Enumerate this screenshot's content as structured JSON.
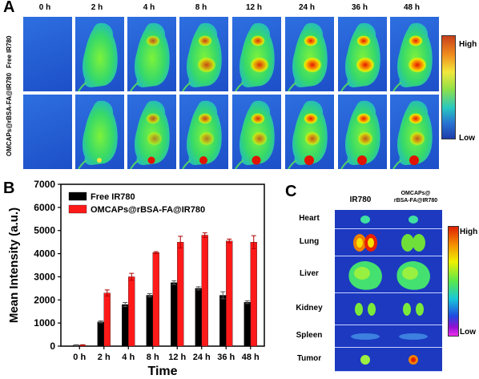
{
  "panels": {
    "a": "A",
    "b": "B",
    "c": "C"
  },
  "panel_a": {
    "timepoints": [
      "0 h",
      "2 h",
      "4 h",
      "8 h",
      "12 h",
      "24 h",
      "36 h",
      "48 h"
    ],
    "rows": [
      "Free IR780",
      "OMCAPs@rBSA-FA@IR780"
    ],
    "colorbar_high": "High",
    "colorbar_low": "Low"
  },
  "panel_c": {
    "columns": [
      "IR780",
      "OMCAPs@",
      "rBSA-FA@IR780"
    ],
    "organs": [
      "Heart",
      "Lung",
      "Liver",
      "Kidney",
      "Spleen",
      "Tumor"
    ],
    "colorbar_high": "High",
    "colorbar_low": "Low"
  },
  "chart_data": {
    "type": "bar",
    "xlabel": "Time",
    "ylabel": "Mean Intensity (a.u.)",
    "ylim": [
      0,
      7000
    ],
    "yticks": [
      "0",
      "1000",
      "2000",
      "3000",
      "4000",
      "5000",
      "6000",
      "7000"
    ],
    "categories": [
      "0 h",
      "2 h",
      "4 h",
      "8 h",
      "12 h",
      "24 h",
      "36 h",
      "48 h"
    ],
    "legend_position": "top-left",
    "series": [
      {
        "name": "Free IR780",
        "color": "#000000",
        "values": [
          40,
          1050,
          1800,
          2200,
          2750,
          2500,
          2200,
          1900
        ],
        "errors": [
          20,
          40,
          90,
          70,
          80,
          70,
          150,
          60
        ]
      },
      {
        "name": "OMCAPs@rBSA-FA@IR780",
        "color": "#ff1a1a",
        "values": [
          40,
          2300,
          3000,
          4050,
          4500,
          4800,
          4550,
          4500
        ],
        "errors": [
          20,
          130,
          150,
          40,
          250,
          100,
          80,
          280
        ]
      }
    ]
  }
}
